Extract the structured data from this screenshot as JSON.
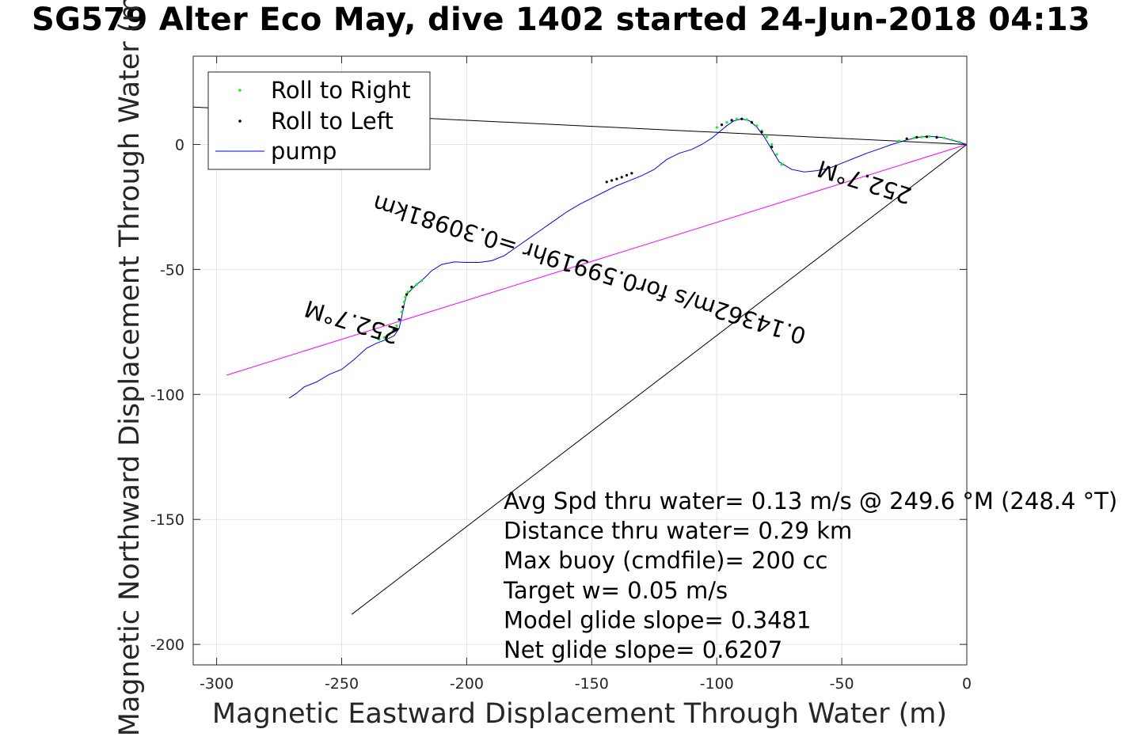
{
  "chart_data": {
    "type": "line",
    "title": "SG579 Alter Eco May, dive 1402 started 24-Jun-2018 04:13",
    "xlabel": "Magnetic Eastward Displacement Through Water (m)",
    "ylabel": "Magnetic Northward Displacement Through Water (m)",
    "xlim": [
      -310,
      0
    ],
    "ylim": [
      -208,
      35
    ],
    "xticks": [
      -300,
      -250,
      -200,
      -150,
      -100,
      -50,
      0
    ],
    "yticks": [
      -200,
      -150,
      -100,
      -50,
      0
    ],
    "grid": true,
    "legend_position": "top-left",
    "legend": [
      "Roll to Right",
      "Roll to Left",
      "pump"
    ],
    "series": [
      {
        "name": "pump",
        "color": "#0000ff",
        "x": [
          0,
          -5,
          -10,
          -15,
          -20,
          -25,
          -30,
          -35,
          -40,
          -45,
          -50,
          -55,
          -60,
          -65,
          -70,
          -75,
          -78,
          -81,
          -84,
          -87,
          -90,
          -93,
          -96,
          -99,
          -102,
          -106,
          -110,
          -115,
          -120,
          -125,
          -130,
          -135,
          -140,
          -145,
          -150,
          -155,
          -160,
          -165,
          -170,
          -175,
          -180,
          -185,
          -190,
          -195,
          -200,
          -205,
          -210,
          -214,
          -217,
          -220,
          -222,
          -224,
          -225,
          -226,
          -227,
          -229,
          -232,
          -236,
          -240,
          -245,
          -250,
          -255,
          -260,
          -265,
          -268,
          -271
        ],
        "y": [
          0,
          1.5,
          2.8,
          3.3,
          2.8,
          1.5,
          0,
          -1.8,
          -3.5,
          -5.5,
          -7.5,
          -9.5,
          -10.5,
          -11,
          -10,
          -7,
          -2,
          3,
          7,
          9.5,
          10.2,
          9.5,
          7.5,
          5,
          2.5,
          0,
          -2,
          -3.5,
          -6,
          -10,
          -12.5,
          -14.5,
          -16.5,
          -19,
          -21.5,
          -24,
          -27,
          -30.5,
          -34,
          -37.5,
          -41,
          -44.5,
          -46.5,
          -47.2,
          -47.2,
          -47,
          -48,
          -50.5,
          -53.5,
          -56,
          -58,
          -60,
          -64,
          -69,
          -73.5,
          -76.5,
          -78,
          -79.5,
          -81.5,
          -86,
          -90,
          -92,
          -95,
          -97,
          -99.5,
          -101.5
        ]
      },
      {
        "name": "Roll to Right",
        "color": "#00ff00",
        "segments": [
          {
            "x": [
              -3,
              -6,
              -9,
              -12,
              -15,
              -18,
              -21,
              -24,
              -27
            ],
            "y": [
              1,
              1.8,
              2.6,
              3,
              3.2,
              3,
              2.6,
              2,
              1.4
            ]
          },
          {
            "x": [
              -74,
              -76,
              -78,
              -80,
              -82,
              -84,
              -86,
              -88,
              -90,
              -92,
              -94,
              -96,
              -98,
              -100
            ],
            "y": [
              -8,
              -4,
              0,
              3,
              5.5,
              7.5,
              9,
              10,
              10.3,
              10.2,
              9.6,
              8.8,
              7.8,
              6.8
            ]
          },
          {
            "x": [
              -218,
              -220,
              -222,
              -223.5,
              -224.5,
              -225,
              -225.5,
              -226,
              -227,
              -228,
              -229.5,
              -231,
              -233,
              -235
            ],
            "y": [
              -54.5,
              -56,
              -57.5,
              -59,
              -61,
              -63,
              -65,
              -67,
              -70,
              -72.5,
              -74.5,
              -76,
              -77.2,
              -78
            ]
          }
        ]
      },
      {
        "name": "Roll to Left",
        "color": "#000000",
        "segments": [
          {
            "x": [
              -134,
              -136,
              -138,
              -140,
              -142,
              -144
            ],
            "y": [
              -11.5,
              -12.3,
              -13.1,
              -13.8,
              -14.4,
              -15
            ]
          },
          {
            "x": [
              -12,
              -16,
              -20,
              -24
            ],
            "y": [
              2.8,
              3.1,
              2.9,
              2.3
            ]
          },
          {
            "x": [
              -78,
              -82,
              -86,
              -90,
              -94,
              -98
            ],
            "y": [
              -1,
              5,
              8.8,
              10.2,
              9.7,
              7.9
            ]
          },
          {
            "x": [
              -222,
              -224,
              -225.5,
              -227,
              -229,
              -232
            ],
            "y": [
              -57,
              -60,
              -65,
              -70,
              -74,
              -77
            ]
          }
        ]
      },
      {
        "name": "mean track",
        "color": "#ff00ff",
        "x": [
          0,
          -296
        ],
        "y": [
          0,
          -92.3
        ]
      },
      {
        "name": "heading line 1",
        "color": "#000000",
        "x": [
          0,
          -310
        ],
        "y": [
          0,
          15
        ]
      },
      {
        "name": "heading line 2",
        "color": "#000000",
        "x": [
          0,
          -246
        ],
        "y": [
          0,
          -188
        ]
      }
    ],
    "annotations": [
      {
        "text": "0.14362m/s for0.59919hr =0.30981km",
        "x": -150,
        "y": -47,
        "rotation_deg": 197.3
      },
      {
        "text": "252.7°M",
        "x": -40,
        "y": -12,
        "rotation_deg": 197.3
      },
      {
        "text": "252.7°M",
        "x": -245,
        "y": -68,
        "rotation_deg": 197.3
      }
    ],
    "info_lines": [
      "Avg Spd thru water=  0.13 m/s @ 249.6 °M (248.4 °T)",
      "Distance thru water=  0.29 km",
      "Max buoy (cmdfile)= 200 cc",
      "Target w= 0.05 m/s",
      "Model glide slope= 0.3481",
      "Net glide slope= 0.6207"
    ]
  }
}
